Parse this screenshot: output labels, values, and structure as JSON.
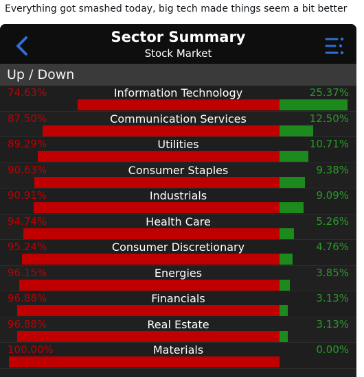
{
  "caption": "Everything got smashed today, big tech made things seem a bit better",
  "header": {
    "title": "Sector Summary",
    "subtitle": "Stock Market",
    "back_icon": "chevron-left-icon",
    "menu_icon": "list-menu-icon",
    "accent": "#2f6fd8"
  },
  "section": {
    "label": "Up / Down"
  },
  "colors": {
    "down": "#c00000",
    "up": "#1d8a1d",
    "background": "#1f1f1f"
  },
  "sectors": [
    {
      "name": "Information Technology",
      "down": "74.63%",
      "up": "25.37%",
      "down_value": 74.63,
      "up_value": 25.37
    },
    {
      "name": "Communication Services",
      "down": "87.50%",
      "up": "12.50%",
      "down_value": 87.5,
      "up_value": 12.5
    },
    {
      "name": "Utilities",
      "down": "89.29%",
      "up": "10.71%",
      "down_value": 89.29,
      "up_value": 10.71
    },
    {
      "name": "Consumer Staples",
      "down": "90.63%",
      "up": "9.38%",
      "down_value": 90.63,
      "up_value": 9.38
    },
    {
      "name": "Industrials",
      "down": "90.91%",
      "up": "9.09%",
      "down_value": 90.91,
      "up_value": 9.09
    },
    {
      "name": "Health Care",
      "down": "94.74%",
      "up": "5.26%",
      "down_value": 94.74,
      "up_value": 5.26
    },
    {
      "name": "Consumer Discretionary",
      "down": "95.24%",
      "up": "4.76%",
      "down_value": 95.24,
      "up_value": 4.76
    },
    {
      "name": "Energies",
      "down": "96.15%",
      "up": "3.85%",
      "down_value": 96.15,
      "up_value": 3.85
    },
    {
      "name": "Financials",
      "down": "96.88%",
      "up": "3.13%",
      "down_value": 96.88,
      "up_value": 3.13
    },
    {
      "name": "Real Estate",
      "down": "96.88%",
      "up": "3.13%",
      "down_value": 96.88,
      "up_value": 3.13
    },
    {
      "name": "Materials",
      "down": "100.00%",
      "up": "0.00%",
      "down_value": 100.0,
      "up_value": 0.0
    }
  ]
}
